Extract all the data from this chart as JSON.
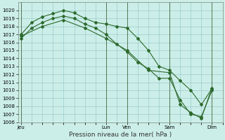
{
  "background_color": "#cceee8",
  "grid_color": "#99cccc",
  "line_color": "#2d6a2d",
  "title": "Pression niveau de la mer( hPa )",
  "ylim": [
    1006,
    1021
  ],
  "yticks": [
    1006,
    1007,
    1008,
    1009,
    1010,
    1011,
    1012,
    1013,
    1014,
    1015,
    1016,
    1017,
    1018,
    1019,
    1020
  ],
  "xtick_labels": [
    "Jeu",
    "Lun",
    "Ven",
    "Sam",
    "Dim"
  ],
  "xtick_positions": [
    0,
    8,
    10,
    14,
    18
  ],
  "xmin": -0.3,
  "xmax": 19,
  "series1_x": [
    0,
    1,
    2,
    3,
    4,
    5,
    6,
    7,
    8,
    9,
    10,
    11,
    12,
    13,
    14,
    15,
    16,
    17,
    18
  ],
  "series1_y": [
    1017.0,
    1018.5,
    1019.2,
    1019.6,
    1020.0,
    1019.7,
    1019.0,
    1018.5,
    1018.3,
    1018.0,
    1017.8,
    1016.5,
    1015.0,
    1013.0,
    1012.5,
    1011.2,
    1010.0,
    1008.2,
    1010.2
  ],
  "series2_x": [
    0,
    1,
    2,
    3,
    4,
    5,
    6,
    7,
    8,
    9,
    10,
    11,
    12,
    13,
    14,
    15,
    16,
    17,
    18
  ],
  "series2_y": [
    1016.5,
    1017.8,
    1018.5,
    1019.0,
    1019.3,
    1019.0,
    1018.3,
    1017.8,
    1017.0,
    1015.8,
    1014.8,
    1013.5,
    1012.7,
    1011.5,
    1011.5,
    1008.8,
    1007.0,
    1006.7,
    1010.0
  ],
  "series3_x": [
    0,
    2,
    4,
    6,
    8,
    10,
    12,
    14,
    15,
    16,
    17,
    18
  ],
  "series3_y": [
    1016.8,
    1018.0,
    1018.8,
    1017.8,
    1016.5,
    1015.0,
    1012.5,
    1012.2,
    1008.2,
    1007.2,
    1006.5,
    1010.3
  ],
  "vlines_x": [
    0,
    8,
    10,
    14,
    18
  ],
  "marker": "D",
  "marker_size": 2.0,
  "linewidth": 0.8,
  "ylabel_fontsize": 5,
  "xlabel_fontsize": 5,
  "title_fontsize": 6.5
}
